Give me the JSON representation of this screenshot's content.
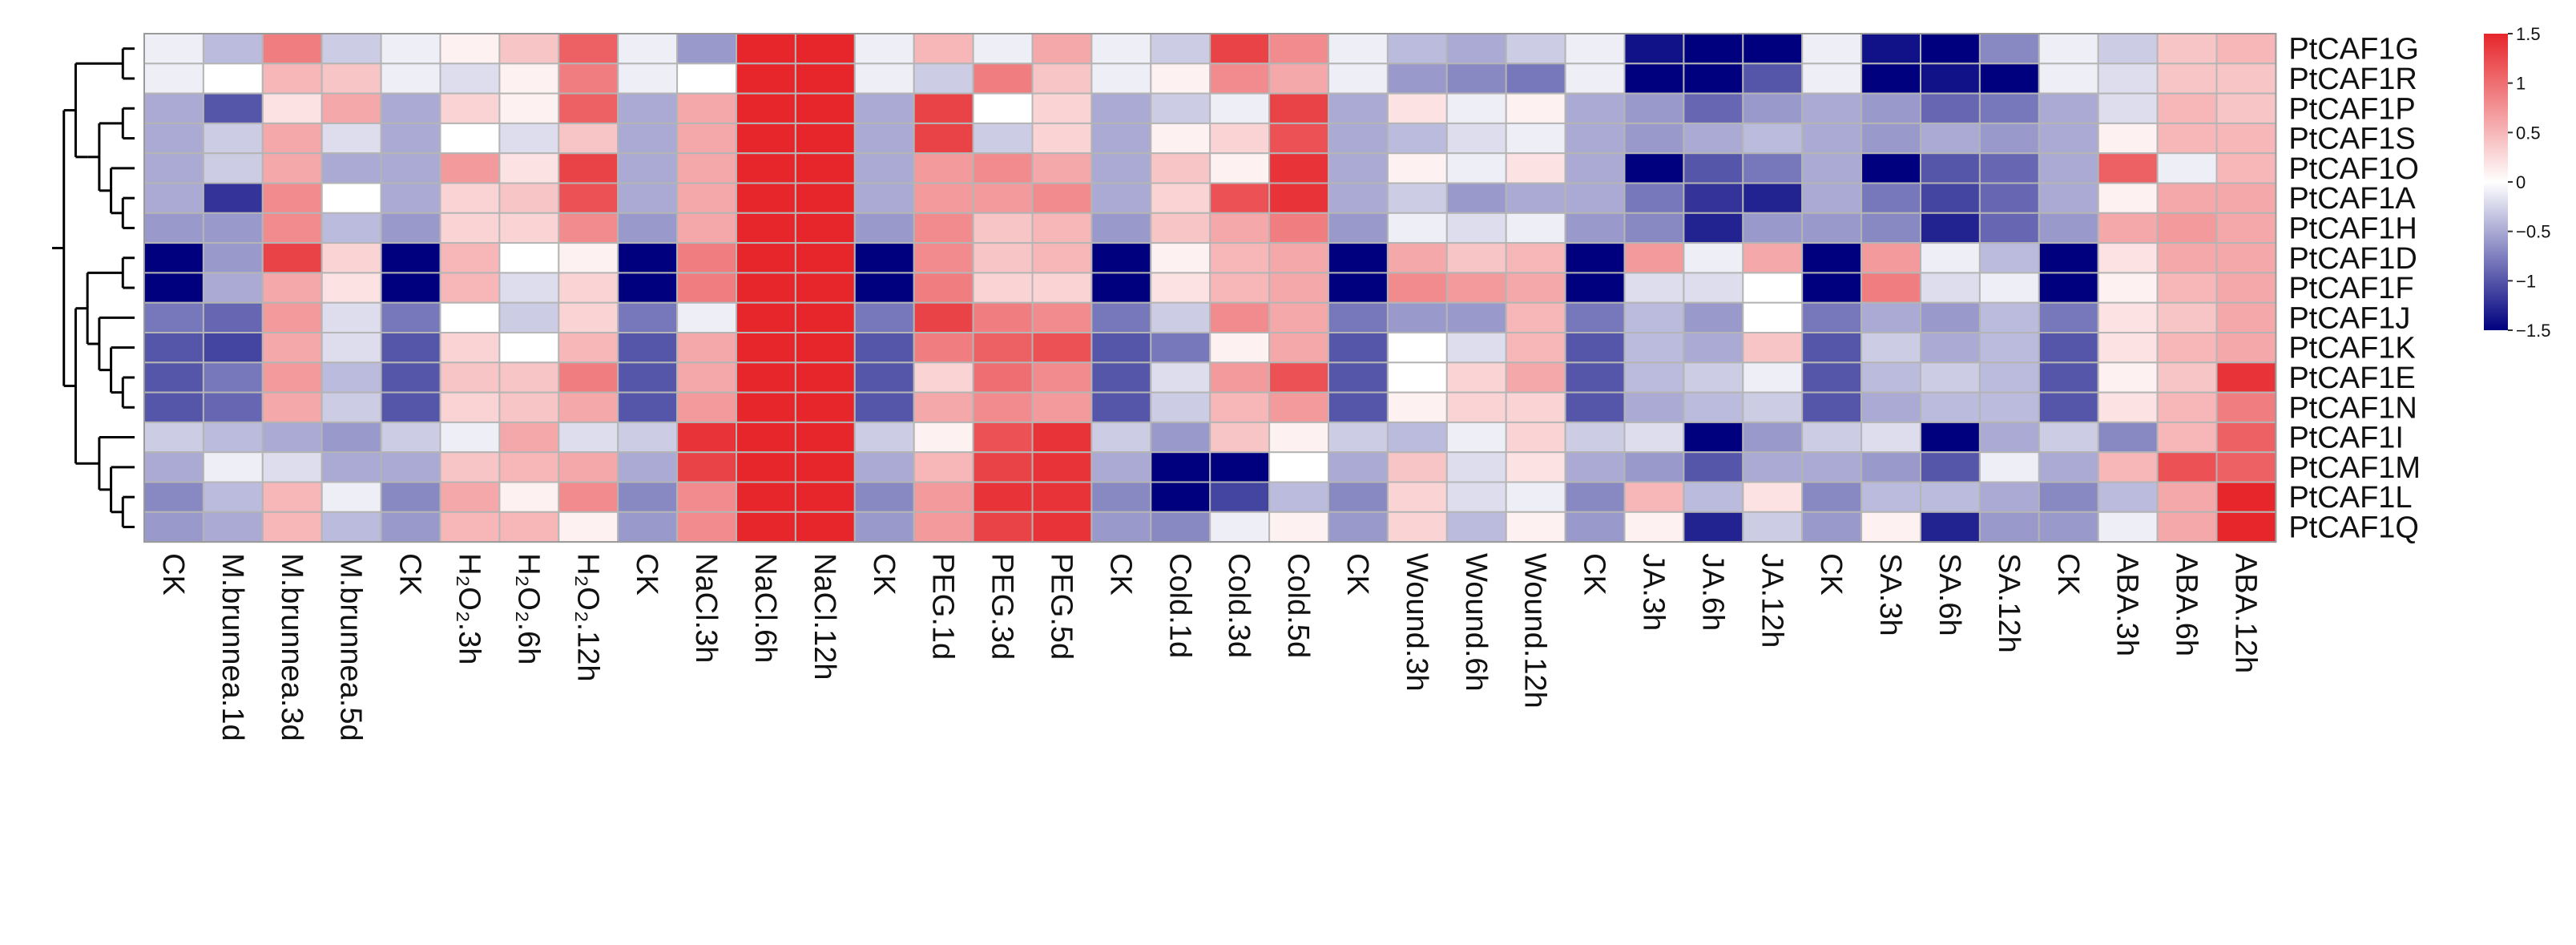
{
  "chart_data": {
    "type": "heatmap",
    "title": "",
    "rows": [
      "PtCAF1G",
      "PtCAF1R",
      "PtCAF1P",
      "PtCAF1S",
      "PtCAF1O",
      "PtCAF1A",
      "PtCAF1H",
      "PtCAF1D",
      "PtCAF1F",
      "PtCAF1J",
      "PtCAF1K",
      "PtCAF1E",
      "PtCAF1N",
      "PtCAF1I",
      "PtCAF1M",
      "PtCAF1L",
      "PtCAF1Q"
    ],
    "columns": [
      "CK",
      "M.brunnea.1d",
      "M.brunnea.3d",
      "M.brunnea.5d",
      "CK",
      "H₂O₂.3h",
      "H₂O₂.6h",
      "H₂O₂.12h",
      "CK",
      "NaCl.3h",
      "NaCl.6h",
      "NaCl.12h",
      "CK",
      "PEG.1d",
      "PEG.3d",
      "PEG.5d",
      "CK",
      "Cold.1d",
      "Cold.3d",
      "Cold.5d",
      "CK",
      "Wound.3h",
      "Wound.6h",
      "Wound.12h",
      "CK",
      "JA.3h",
      "JA.6h",
      "JA.12h",
      "CK",
      "SA.3h",
      "SA.6h",
      "SA.12h",
      "CK",
      "ABA.3h",
      "ABA.6h",
      "ABA.12h"
    ],
    "values": [
      [
        -0.1,
        -0.4,
        0.9,
        -0.3,
        -0.1,
        0.1,
        0.4,
        1.1,
        -0.1,
        -0.6,
        1.5,
        1.5,
        -0.1,
        0.5,
        -0.1,
        0.6,
        -0.1,
        -0.3,
        1.3,
        0.8,
        -0.1,
        -0.4,
        -0.5,
        -0.3,
        -0.1,
        -1.4,
        -1.5,
        -1.5,
        -0.1,
        -1.4,
        -1.5,
        -0.7,
        -0.1,
        -0.3,
        0.4,
        0.5
      ],
      [
        -0.1,
        0.0,
        0.5,
        0.4,
        -0.1,
        -0.2,
        0.1,
        0.9,
        -0.1,
        0.0,
        1.5,
        1.5,
        -0.1,
        -0.3,
        0.9,
        0.4,
        -0.1,
        0.1,
        0.8,
        0.6,
        -0.1,
        -0.6,
        -0.7,
        -0.8,
        -0.1,
        -1.5,
        -1.5,
        -1.0,
        -0.1,
        -1.5,
        -1.4,
        -1.5,
        -0.1,
        -0.2,
        0.4,
        0.4
      ],
      [
        -0.5,
        -1.0,
        0.2,
        0.6,
        -0.5,
        0.3,
        0.1,
        1.1,
        -0.5,
        0.6,
        1.5,
        1.5,
        -0.5,
        1.3,
        0.0,
        0.3,
        -0.5,
        -0.3,
        -0.1,
        1.3,
        -0.5,
        0.2,
        -0.1,
        0.1,
        -0.5,
        -0.6,
        -0.9,
        -0.6,
        -0.5,
        -0.6,
        -0.9,
        -0.8,
        -0.5,
        -0.2,
        0.5,
        0.4
      ],
      [
        -0.5,
        -0.3,
        0.6,
        -0.2,
        -0.5,
        0.0,
        -0.2,
        0.4,
        -0.5,
        0.6,
        1.5,
        1.5,
        -0.5,
        1.3,
        -0.3,
        0.3,
        -0.5,
        0.1,
        0.3,
        1.2,
        -0.5,
        -0.4,
        -0.2,
        -0.1,
        -0.5,
        -0.6,
        -0.5,
        -0.4,
        -0.5,
        -0.6,
        -0.5,
        -0.6,
        -0.5,
        0.1,
        0.5,
        0.5
      ],
      [
        -0.5,
        -0.3,
        0.6,
        -0.5,
        -0.5,
        0.7,
        0.2,
        1.3,
        -0.5,
        0.6,
        1.5,
        1.5,
        -0.5,
        0.7,
        0.8,
        0.6,
        -0.5,
        0.4,
        0.1,
        1.4,
        -0.5,
        0.1,
        -0.1,
        0.2,
        -0.5,
        -1.5,
        -1.0,
        -0.8,
        -0.5,
        -1.5,
        -1.0,
        -0.9,
        -0.5,
        1.1,
        -0.1,
        0.5
      ],
      [
        -0.5,
        -1.2,
        0.8,
        0.0,
        -0.5,
        0.3,
        0.4,
        1.2,
        -0.5,
        0.6,
        1.5,
        1.5,
        -0.5,
        0.7,
        0.7,
        0.8,
        -0.5,
        0.3,
        1.2,
        1.4,
        -0.5,
        -0.3,
        -0.6,
        -0.5,
        -0.5,
        -0.8,
        -1.2,
        -1.3,
        -0.5,
        -0.8,
        -1.1,
        -0.9,
        -0.5,
        0.1,
        0.6,
        0.6
      ],
      [
        -0.6,
        -0.6,
        0.8,
        -0.4,
        -0.6,
        0.3,
        0.3,
        0.8,
        -0.6,
        0.6,
        1.5,
        1.5,
        -0.6,
        0.8,
        0.4,
        0.5,
        -0.6,
        0.4,
        0.6,
        0.9,
        -0.6,
        -0.1,
        -0.2,
        -0.1,
        -0.6,
        -0.7,
        -1.3,
        -0.6,
        -0.6,
        -0.7,
        -1.3,
        -0.9,
        -0.6,
        0.6,
        0.7,
        0.6
      ],
      [
        -1.5,
        -0.6,
        1.3,
        0.3,
        -1.5,
        0.5,
        0.0,
        0.1,
        -1.5,
        0.9,
        1.5,
        1.5,
        -1.5,
        0.8,
        0.4,
        0.5,
        -1.5,
        0.1,
        0.5,
        0.6,
        -1.5,
        0.6,
        0.4,
        0.5,
        -1.5,
        0.7,
        -0.1,
        0.6,
        -1.5,
        0.7,
        -0.1,
        -0.4,
        -1.5,
        0.2,
        0.6,
        0.6
      ],
      [
        -1.5,
        -0.5,
        0.6,
        0.2,
        -1.5,
        0.5,
        -0.2,
        0.3,
        -1.5,
        0.9,
        1.5,
        1.5,
        -1.5,
        0.9,
        0.3,
        0.3,
        -1.5,
        0.2,
        0.5,
        0.6,
        -1.5,
        0.8,
        0.7,
        0.6,
        -1.5,
        -0.2,
        -0.2,
        0.0,
        -1.5,
        0.9,
        -0.2,
        -0.1,
        -1.5,
        0.1,
        0.5,
        0.6
      ],
      [
        -0.8,
        -0.9,
        0.7,
        -0.2,
        -0.8,
        0.0,
        -0.3,
        0.3,
        -0.8,
        -0.1,
        1.5,
        1.5,
        -0.8,
        1.3,
        0.9,
        0.8,
        -0.8,
        -0.3,
        0.8,
        0.6,
        -0.8,
        -0.6,
        -0.6,
        0.5,
        -0.8,
        -0.4,
        -0.6,
        0.0,
        -0.8,
        -0.5,
        -0.6,
        -0.4,
        -0.8,
        0.2,
        0.4,
        0.6
      ],
      [
        -1.0,
        -1.1,
        0.6,
        -0.2,
        -1.0,
        0.3,
        0.0,
        0.5,
        -1.0,
        0.6,
        1.5,
        1.5,
        -1.0,
        0.9,
        1.1,
        1.2,
        -1.0,
        -0.8,
        0.1,
        0.6,
        -1.0,
        0.0,
        -0.2,
        0.5,
        -1.0,
        -0.4,
        -0.5,
        0.4,
        -1.0,
        -0.3,
        -0.5,
        -0.4,
        -1.0,
        0.2,
        0.5,
        0.6
      ],
      [
        -1.0,
        -0.8,
        0.7,
        -0.4,
        -1.0,
        0.4,
        0.4,
        0.9,
        -1.0,
        0.6,
        1.5,
        1.5,
        -1.0,
        0.3,
        1.0,
        0.8,
        -1.0,
        -0.2,
        0.7,
        1.2,
        -1.0,
        0.0,
        0.3,
        0.6,
        -1.0,
        -0.4,
        -0.3,
        -0.1,
        -1.0,
        -0.4,
        -0.3,
        -0.4,
        -1.0,
        0.1,
        0.4,
        1.4
      ],
      [
        -1.0,
        -0.9,
        0.6,
        -0.3,
        -1.0,
        0.3,
        0.4,
        0.6,
        -1.0,
        0.7,
        1.5,
        1.5,
        -1.0,
        0.6,
        0.8,
        0.7,
        -1.0,
        -0.3,
        0.5,
        0.7,
        -1.0,
        0.1,
        0.3,
        0.3,
        -1.0,
        -0.5,
        -0.4,
        -0.3,
        -1.0,
        -0.5,
        -0.4,
        -0.4,
        -1.0,
        0.2,
        0.5,
        0.9
      ],
      [
        -0.3,
        -0.4,
        -0.5,
        -0.6,
        -0.3,
        -0.1,
        0.6,
        -0.2,
        -0.3,
        1.4,
        1.5,
        1.5,
        -0.3,
        0.1,
        1.2,
        1.4,
        -0.3,
        -0.6,
        0.4,
        0.1,
        -0.3,
        -0.4,
        -0.1,
        0.3,
        -0.3,
        -0.2,
        -1.5,
        -0.6,
        -0.3,
        -0.2,
        -1.5,
        -0.5,
        -0.3,
        -0.7,
        0.5,
        1.1
      ],
      [
        -0.5,
        -0.1,
        -0.2,
        -0.5,
        -0.5,
        0.4,
        0.5,
        0.6,
        -0.5,
        1.3,
        1.5,
        1.5,
        -0.5,
        0.5,
        1.3,
        1.4,
        -0.5,
        -1.5,
        -1.5,
        0.0,
        -0.5,
        0.4,
        -0.2,
        0.2,
        -0.5,
        -0.6,
        -1.0,
        -0.5,
        -0.5,
        -0.6,
        -1.0,
        -0.1,
        -0.5,
        0.5,
        1.2,
        1.1
      ],
      [
        -0.7,
        -0.4,
        0.5,
        -0.1,
        -0.7,
        0.6,
        0.1,
        0.8,
        -0.7,
        0.8,
        1.5,
        1.5,
        -0.7,
        0.7,
        1.4,
        1.4,
        -0.7,
        -1.5,
        -1.1,
        -0.4,
        -0.7,
        0.3,
        -0.2,
        -0.1,
        -0.7,
        0.5,
        -0.4,
        0.2,
        -0.7,
        -0.4,
        -0.4,
        -0.5,
        -0.7,
        -0.4,
        0.6,
        1.5
      ],
      [
        -0.6,
        -0.5,
        0.5,
        -0.4,
        -0.6,
        0.5,
        0.5,
        0.1,
        -0.6,
        0.8,
        1.5,
        1.5,
        -0.6,
        0.7,
        1.3,
        1.4,
        -0.6,
        -0.7,
        -0.1,
        0.1,
        -0.6,
        0.3,
        -0.4,
        0.1,
        -0.6,
        0.1,
        -1.3,
        -0.3,
        -0.6,
        0.1,
        -1.3,
        -0.6,
        -0.6,
        -0.1,
        0.6,
        1.5
      ]
    ],
    "color_scale": {
      "min": -1.5,
      "max": 1.5,
      "low_color": "#00007f",
      "mid_color": "#ffffff",
      "high_color": "#e6262b"
    },
    "legend_ticks": [
      "1.5",
      "1",
      "0.5",
      "0",
      "−0.5",
      "−1",
      "−1.5"
    ],
    "legend_values": [
      1.5,
      1,
      0.5,
      0,
      -0.5,
      -1,
      -1.5
    ],
    "legend_position": "right",
    "dendrogram_tree": [
      [
        [
          [
            "PtCAF1G",
            "PtCAF1R"
          ],
          [
            [
              [
                "PtCAF1P",
                "PtCAF1S"
              ],
              [
                "PtCAF1O",
                [
                  "PtCAF1A",
                  "PtCAF1H"
                ]
              ]
            ]
          ]
        ],
        [
          [
            [
              "PtCAF1D",
              "PtCAF1F"
            ],
            [
              "PtCAF1J",
              [
                "PtCAF1K",
                [
                  "PtCAF1E",
                  "PtCAF1N"
                ]
              ]
            ]
          ],
          [
            "PtCAF1I",
            [
              "PtCAF1M",
              [
                "PtCAF1L",
                "PtCAF1Q"
              ]
            ]
          ]
        ]
      ]
    ]
  }
}
